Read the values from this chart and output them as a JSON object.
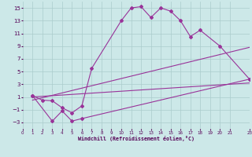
{
  "xlabel": "Windchill (Refroidissement éolien,°C)",
  "bg_color": "#cce8e8",
  "grid_color": "#aacccc",
  "line_color": "#993399",
  "xlim": [
    0,
    23
  ],
  "ylim": [
    -4,
    16
  ],
  "xticks": [
    0,
    1,
    2,
    3,
    4,
    5,
    6,
    7,
    8,
    9,
    10,
    11,
    12,
    13,
    14,
    15,
    16,
    17,
    18,
    19,
    20,
    21,
    23
  ],
  "yticks": [
    -3,
    -1,
    1,
    3,
    5,
    7,
    9,
    11,
    13,
    15
  ],
  "series1_x": [
    1,
    2,
    3,
    4,
    5,
    6,
    7,
    10,
    11,
    12,
    13,
    14,
    15,
    16,
    17,
    18,
    20,
    23
  ],
  "series1_y": [
    1.2,
    0.5,
    0.4,
    -0.7,
    -1.5,
    -0.4,
    5.5,
    13.0,
    15.0,
    15.2,
    13.5,
    15.0,
    14.5,
    13.0,
    10.5,
    11.5,
    9.0,
    3.8
  ],
  "series2_x": [
    1,
    3,
    4,
    5,
    6,
    23
  ],
  "series2_y": [
    1.2,
    -2.8,
    -1.2,
    -2.8,
    -2.4,
    3.8
  ],
  "series3_x": [
    1,
    23
  ],
  "series3_y": [
    1.0,
    3.2
  ],
  "series4_x": [
    1,
    23
  ],
  "series4_y": [
    0.5,
    8.8
  ]
}
